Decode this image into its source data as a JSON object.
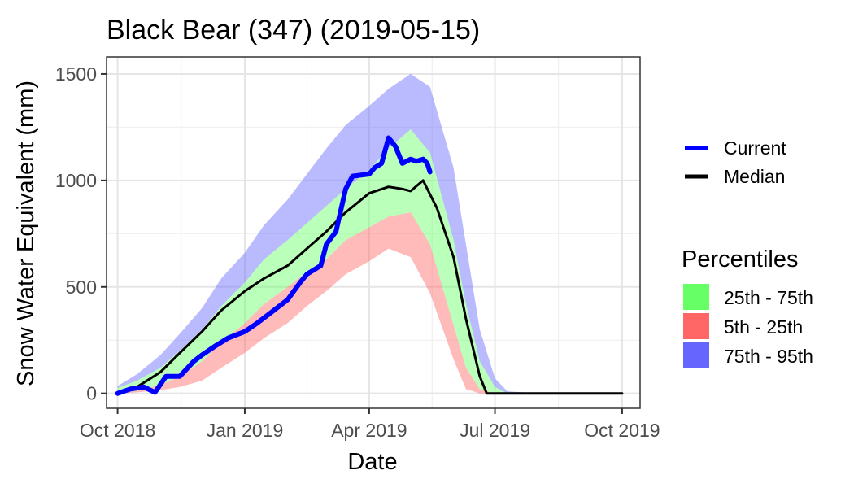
{
  "chart_data": {
    "type": "area",
    "title": "Black Bear (347) (2019-05-15)",
    "xlabel": "Date",
    "ylabel": "Snow Water Equivalent (mm)",
    "x_ticks": [
      {
        "label": "Oct 2018",
        "date": "2018-10-01"
      },
      {
        "label": "Jan 2019",
        "date": "2019-01-01"
      },
      {
        "label": "Apr 2019",
        "date": "2019-04-01"
      },
      {
        "label": "Jul 2019",
        "date": "2019-07-01"
      },
      {
        "label": "Oct 2019",
        "date": "2019-10-01"
      }
    ],
    "xlim": [
      "2018-09-23",
      "2019-10-14"
    ],
    "y_ticks": [
      0,
      500,
      1000,
      1500
    ],
    "ylim": [
      -70,
      1580
    ],
    "grid": true,
    "legend_lines": {
      "entries": [
        {
          "name": "Current",
          "color": "#0000ff"
        },
        {
          "name": "Median",
          "color": "#000000"
        }
      ]
    },
    "legend_fills": {
      "title": "Percentiles",
      "entries": [
        {
          "name": "25th - 75th",
          "color": "#66ff66"
        },
        {
          "name": "5th - 25th",
          "color": "#ff6666"
        },
        {
          "name": "75th - 95th",
          "color": "#6666ff"
        }
      ]
    },
    "bands": {
      "x": [
        "2018-10-01",
        "2018-10-15",
        "2018-11-01",
        "2018-11-15",
        "2018-12-01",
        "2018-12-15",
        "2019-01-01",
        "2019-01-15",
        "2019-02-01",
        "2019-02-15",
        "2019-03-01",
        "2019-03-15",
        "2019-04-01",
        "2019-04-15",
        "2019-05-01",
        "2019-05-15",
        "2019-06-01",
        "2019-06-10",
        "2019-06-20",
        "2019-07-01",
        "2019-07-10",
        "2019-08-01",
        "2019-10-01"
      ],
      "p5": [
        0,
        5,
        15,
        30,
        60,
        120,
        190,
        260,
        330,
        410,
        480,
        560,
        620,
        680,
        640,
        470,
        160,
        20,
        0,
        0,
        0,
        0,
        0
      ],
      "p25": [
        0,
        12,
        40,
        80,
        150,
        240,
        330,
        420,
        500,
        570,
        630,
        720,
        780,
        830,
        850,
        700,
        320,
        120,
        20,
        0,
        0,
        0,
        0
      ],
      "p75": [
        25,
        60,
        120,
        200,
        300,
        410,
        520,
        630,
        720,
        800,
        880,
        960,
        1050,
        1150,
        1240,
        1130,
        720,
        420,
        150,
        30,
        0,
        0,
        0
      ],
      "p95": [
        35,
        90,
        180,
        280,
        400,
        540,
        660,
        790,
        910,
        1030,
        1150,
        1260,
        1350,
        1430,
        1500,
        1440,
        1060,
        700,
        300,
        70,
        10,
        0,
        0
      ]
    },
    "series": [
      {
        "name": "Median",
        "color": "#000000",
        "x": [
          "2018-10-01",
          "2018-10-15",
          "2018-11-01",
          "2018-11-15",
          "2018-12-01",
          "2018-12-15",
          "2019-01-01",
          "2019-01-15",
          "2019-02-01",
          "2019-02-15",
          "2019-03-01",
          "2019-03-15",
          "2019-04-01",
          "2019-04-15",
          "2019-04-25",
          "2019-05-01",
          "2019-05-10",
          "2019-05-20",
          "2019-06-01",
          "2019-06-10",
          "2019-06-20",
          "2019-06-25",
          "2019-07-01",
          "2019-08-01",
          "2019-10-01"
        ],
        "values": [
          0,
          30,
          100,
          190,
          290,
          390,
          480,
          540,
          600,
          680,
          760,
          850,
          940,
          970,
          960,
          950,
          1000,
          870,
          640,
          350,
          80,
          0,
          0,
          0,
          0
        ]
      },
      {
        "name": "Current",
        "color": "#0000ff",
        "x": [
          "2018-10-01",
          "2018-10-10",
          "2018-10-20",
          "2018-10-28",
          "2018-11-05",
          "2018-11-15",
          "2018-11-25",
          "2018-12-01",
          "2018-12-10",
          "2018-12-20",
          "2019-01-01",
          "2019-01-10",
          "2019-01-20",
          "2019-02-01",
          "2019-02-10",
          "2019-02-15",
          "2019-02-25",
          "2019-03-01",
          "2019-03-08",
          "2019-03-15",
          "2019-03-20",
          "2019-04-01",
          "2019-04-05",
          "2019-04-10",
          "2019-04-15",
          "2019-04-20",
          "2019-04-25",
          "2019-05-01",
          "2019-05-05",
          "2019-05-10",
          "2019-05-13",
          "2019-05-15"
        ],
        "values": [
          0,
          20,
          30,
          5,
          80,
          80,
          150,
          180,
          220,
          260,
          290,
          330,
          380,
          440,
          520,
          560,
          600,
          700,
          760,
          960,
          1020,
          1030,
          1060,
          1080,
          1200,
          1160,
          1080,
          1100,
          1090,
          1100,
          1080,
          1040
        ]
      }
    ]
  }
}
